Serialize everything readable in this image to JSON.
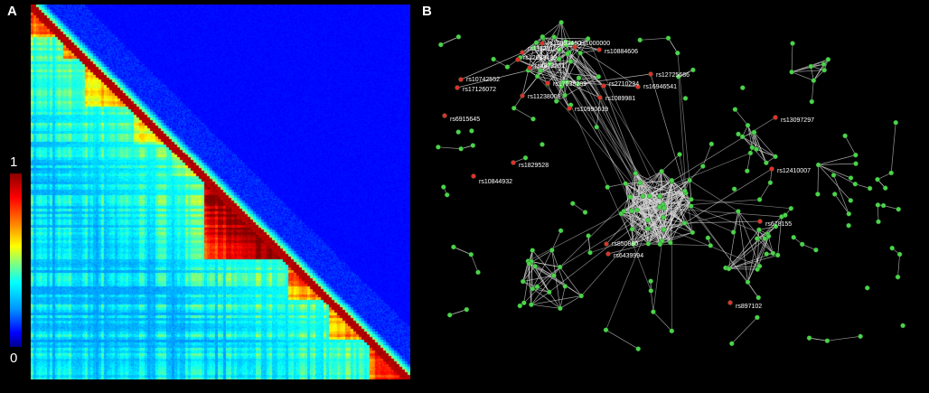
{
  "panel_a": {
    "letter": "A",
    "colorbar": {
      "max_label": "1",
      "min_label": "0"
    },
    "colors": {
      "low": "#0000cc",
      "mid": "#00d4ff",
      "high": "#ffff00",
      "top": "#cc0000"
    }
  },
  "panel_b": {
    "letter": "B",
    "colors": {
      "node": "#4cd44c",
      "highlighted_node": "#e03030",
      "edge": "#d8d8d8",
      "background": "#000000"
    },
    "labels": [
      "rs10993460",
      "rs11126160",
      "rs1000000",
      "rs10884606",
      "rs12683489",
      "rs4872261",
      "rs12725686",
      "rs10742552",
      "rs17126072",
      "rs17038289",
      "rs2710234",
      "rs16946541",
      "rs11238009",
      "rs1089981",
      "rs10990619",
      "rs6915645",
      "rs13097297",
      "rs1829528",
      "rs10844932",
      "rs12410007",
      "rs678155",
      "rs850880",
      "rs6439994",
      "rs897102"
    ]
  }
}
